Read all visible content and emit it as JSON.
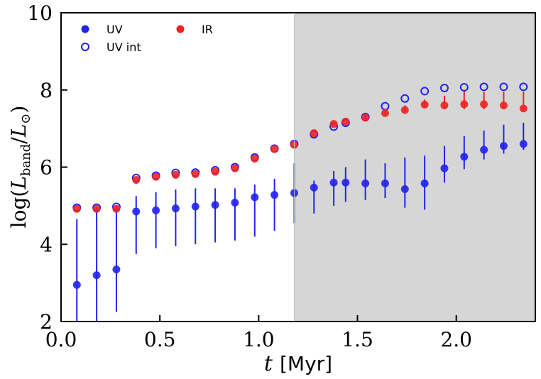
{
  "chart_data": {
    "type": "scatter",
    "xlabel": {
      "var": "t",
      "unit": "[Myr]"
    },
    "ylabel": {
      "prefix": "log(",
      "num_var": "L",
      "num_sub": "band",
      "slash": "/",
      "den_var": "L",
      "den_sub": "⊙",
      "suffix": ")"
    },
    "xlim": [
      0.0,
      2.4
    ],
    "ylim": [
      2,
      10
    ],
    "x_ticks": [
      0.0,
      0.5,
      1.0,
      1.5,
      2.0
    ],
    "x_tick_labels": [
      "0.0",
      "0.5",
      "1.0",
      "1.5",
      "2.0"
    ],
    "y_ticks": [
      2,
      4,
      6,
      8,
      10
    ],
    "y_tick_labels": [
      "2",
      "4",
      "6",
      "8",
      "10"
    ],
    "shaded_region": {
      "x_start": 1.18,
      "x_end": 2.4,
      "color": "#d6d6d6"
    },
    "legend_position": "top-left",
    "series": [
      {
        "name": "UV",
        "marker": "filled-circle",
        "color": "#2222ee",
        "points": [
          {
            "x": 0.08,
            "y": 2.95,
            "ylo": 2.0,
            "yhi": 4.65
          },
          {
            "x": 0.18,
            "y": 3.2,
            "ylo": 2.0,
            "yhi": 4.95
          },
          {
            "x": 0.28,
            "y": 3.35,
            "ylo": 2.25,
            "yhi": 5.0
          },
          {
            "x": 0.38,
            "y": 4.85,
            "ylo": 3.75,
            "yhi": 5.25
          },
          {
            "x": 0.48,
            "y": 4.88,
            "ylo": 3.9,
            "yhi": 5.35
          },
          {
            "x": 0.58,
            "y": 4.93,
            "ylo": 3.95,
            "yhi": 5.42
          },
          {
            "x": 0.68,
            "y": 4.98,
            "ylo": 4.0,
            "yhi": 5.45
          },
          {
            "x": 0.78,
            "y": 5.02,
            "ylo": 4.05,
            "yhi": 5.45
          },
          {
            "x": 0.88,
            "y": 5.08,
            "ylo": 4.1,
            "yhi": 5.45
          },
          {
            "x": 0.98,
            "y": 5.22,
            "ylo": 4.2,
            "yhi": 5.55
          },
          {
            "x": 1.08,
            "y": 5.28,
            "ylo": 4.35,
            "yhi": 5.7
          },
          {
            "x": 1.18,
            "y": 5.33,
            "ylo": 4.55,
            "yhi": 6.1
          },
          {
            "x": 1.28,
            "y": 5.47,
            "ylo": 4.8,
            "yhi": 5.65
          },
          {
            "x": 1.38,
            "y": 5.6,
            "ylo": 5.0,
            "yhi": 5.9
          },
          {
            "x": 1.44,
            "y": 5.6,
            "ylo": 5.1,
            "yhi": 6.0
          },
          {
            "x": 1.54,
            "y": 5.58,
            "ylo": 5.15,
            "yhi": 6.2
          },
          {
            "x": 1.64,
            "y": 5.58,
            "ylo": 5.2,
            "yhi": 6.1
          },
          {
            "x": 1.74,
            "y": 5.43,
            "ylo": 4.95,
            "yhi": 6.25
          },
          {
            "x": 1.84,
            "y": 5.58,
            "ylo": 4.9,
            "yhi": 6.3
          },
          {
            "x": 1.94,
            "y": 5.97,
            "ylo": 5.6,
            "yhi": 6.55
          },
          {
            "x": 2.04,
            "y": 6.27,
            "ylo": 5.95,
            "yhi": 6.8
          },
          {
            "x": 2.14,
            "y": 6.45,
            "ylo": 6.2,
            "yhi": 6.95
          },
          {
            "x": 2.24,
            "y": 6.55,
            "ylo": 6.35,
            "yhi": 7.1
          },
          {
            "x": 2.34,
            "y": 6.6,
            "ylo": 6.45,
            "yhi": 7.15
          }
        ]
      },
      {
        "name": "UV int",
        "marker": "open-circle",
        "color": "#2222ee",
        "points": [
          {
            "x": 0.08,
            "y": 4.95
          },
          {
            "x": 0.18,
            "y": 4.95
          },
          {
            "x": 0.28,
            "y": 4.97
          },
          {
            "x": 0.38,
            "y": 5.72
          },
          {
            "x": 0.48,
            "y": 5.78
          },
          {
            "x": 0.58,
            "y": 5.85
          },
          {
            "x": 0.68,
            "y": 5.86
          },
          {
            "x": 0.78,
            "y": 5.92
          },
          {
            "x": 0.88,
            "y": 6.0
          },
          {
            "x": 0.98,
            "y": 6.25
          },
          {
            "x": 1.08,
            "y": 6.48
          },
          {
            "x": 1.18,
            "y": 6.6
          },
          {
            "x": 1.28,
            "y": 6.85
          },
          {
            "x": 1.38,
            "y": 7.05
          },
          {
            "x": 1.44,
            "y": 7.15
          },
          {
            "x": 1.54,
            "y": 7.3
          },
          {
            "x": 1.64,
            "y": 7.58
          },
          {
            "x": 1.74,
            "y": 7.78
          },
          {
            "x": 1.84,
            "y": 7.97
          },
          {
            "x": 1.94,
            "y": 8.05
          },
          {
            "x": 2.04,
            "y": 8.07
          },
          {
            "x": 2.14,
            "y": 8.08
          },
          {
            "x": 2.24,
            "y": 8.08
          },
          {
            "x": 2.34,
            "y": 8.08
          }
        ]
      },
      {
        "name": "IR",
        "marker": "filled-circle",
        "color": "#ee2222",
        "points": [
          {
            "x": 0.08,
            "y": 4.92
          },
          {
            "x": 0.18,
            "y": 4.92
          },
          {
            "x": 0.28,
            "y": 4.92
          },
          {
            "x": 0.38,
            "y": 5.67
          },
          {
            "x": 0.48,
            "y": 5.75
          },
          {
            "x": 0.58,
            "y": 5.8
          },
          {
            "x": 0.68,
            "y": 5.82
          },
          {
            "x": 0.78,
            "y": 5.88
          },
          {
            "x": 0.88,
            "y": 5.97
          },
          {
            "x": 0.98,
            "y": 6.22
          },
          {
            "x": 1.08,
            "y": 6.47
          },
          {
            "x": 1.18,
            "y": 6.58
          },
          {
            "x": 1.28,
            "y": 6.88
          },
          {
            "x": 1.38,
            "y": 7.12
          },
          {
            "x": 1.44,
            "y": 7.18
          },
          {
            "x": 1.54,
            "y": 7.28,
            "ylo": 7.25,
            "yhi": 7.35
          },
          {
            "x": 1.64,
            "y": 7.4,
            "ylo": 7.35,
            "yhi": 7.5
          },
          {
            "x": 1.74,
            "y": 7.48,
            "ylo": 7.42,
            "yhi": 7.6
          },
          {
            "x": 1.84,
            "y": 7.62,
            "ylo": 7.55,
            "yhi": 7.75
          },
          {
            "x": 1.94,
            "y": 7.6,
            "ylo": 7.5,
            "yhi": 7.85
          },
          {
            "x": 2.04,
            "y": 7.63,
            "ylo": 7.5,
            "yhi": 8.0
          },
          {
            "x": 2.14,
            "y": 7.63,
            "ylo": 7.5,
            "yhi": 7.95
          },
          {
            "x": 2.24,
            "y": 7.6,
            "ylo": 7.5,
            "yhi": 7.95
          },
          {
            "x": 2.34,
            "y": 7.52,
            "ylo": 7.45,
            "yhi": 7.95
          }
        ]
      }
    ]
  }
}
